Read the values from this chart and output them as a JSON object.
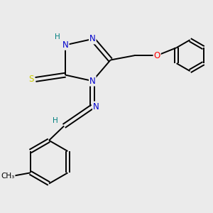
{
  "bg_color": "#ebebeb",
  "atom_colors": {
    "C": "#000000",
    "N": "#0000cc",
    "O": "#ff0000",
    "S": "#cccc00",
    "H": "#008080"
  },
  "bond_color": "#000000",
  "figsize": [
    3.0,
    3.0
  ],
  "dpi": 100
}
